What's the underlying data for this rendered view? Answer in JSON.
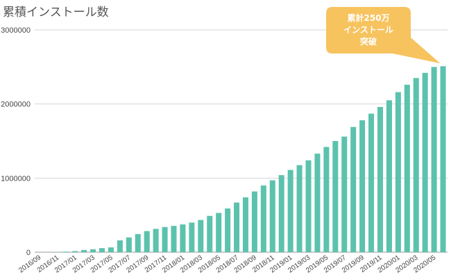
{
  "chart_data": {
    "type": "bar",
    "title": "累積インストール数",
    "xlabel": "",
    "ylabel": "",
    "ylim": [
      0,
      3000000
    ],
    "yticks": [
      "0",
      "1000000",
      "2000000",
      "3000000"
    ],
    "grid": true,
    "legend": "none",
    "bar_color": "#5cc2ad",
    "callout": {
      "lines": [
        "累計250万",
        "インストール",
        "突破"
      ],
      "color": "#f7c35f"
    },
    "categories": [
      "2016/09",
      "2016/10",
      "2016/11",
      "2016/12",
      "2017/01",
      "2017/02",
      "2017/03",
      "2017/04",
      "2017/05",
      "2017/06",
      "2017/07",
      "2017/08",
      "2017/09",
      "2017/10",
      "2017/11",
      "2017/12",
      "2018/01",
      "2018/02",
      "2018/03",
      "2018/04",
      "2018/05",
      "2018/06",
      "2018/07",
      "2018/08",
      "2018/09",
      "2018/10",
      "2018/11",
      "2018/12",
      "2019/01",
      "2019/02",
      "2019/03",
      "2019/04",
      "2019/05",
      "2019/06",
      "2019/07",
      "2019/08",
      "2019/09",
      "2019/10",
      "2019/11",
      "2019/12",
      "2020/01",
      "2020/02",
      "2020/03",
      "2020/04",
      "2020/05",
      "2020/06"
    ],
    "xtick_labels": [
      "2016/09",
      "2016/11",
      "2017/01",
      "2017/03",
      "2017/05",
      "2017/07",
      "2017/09",
      "2017/11",
      "2018/01",
      "2018/03",
      "2018/05",
      "2018/07",
      "2018/09",
      "2018/11",
      "2019/01",
      "2019/03",
      "2019/05",
      "2019/07",
      "2019/09",
      "2019/11",
      "2020/01",
      "2020/03",
      "2020/05"
    ],
    "values": [
      0,
      0,
      5000,
      8000,
      15000,
      30000,
      40000,
      55000,
      65000,
      160000,
      200000,
      245000,
      285000,
      315000,
      340000,
      355000,
      375000,
      400000,
      435000,
      490000,
      530000,
      590000,
      670000,
      740000,
      820000,
      900000,
      970000,
      1040000,
      1110000,
      1175000,
      1240000,
      1330000,
      1420000,
      1500000,
      1560000,
      1690000,
      1780000,
      1870000,
      1960000,
      2050000,
      2160000,
      2260000,
      2350000,
      2420000,
      2500000,
      2510000
    ]
  }
}
